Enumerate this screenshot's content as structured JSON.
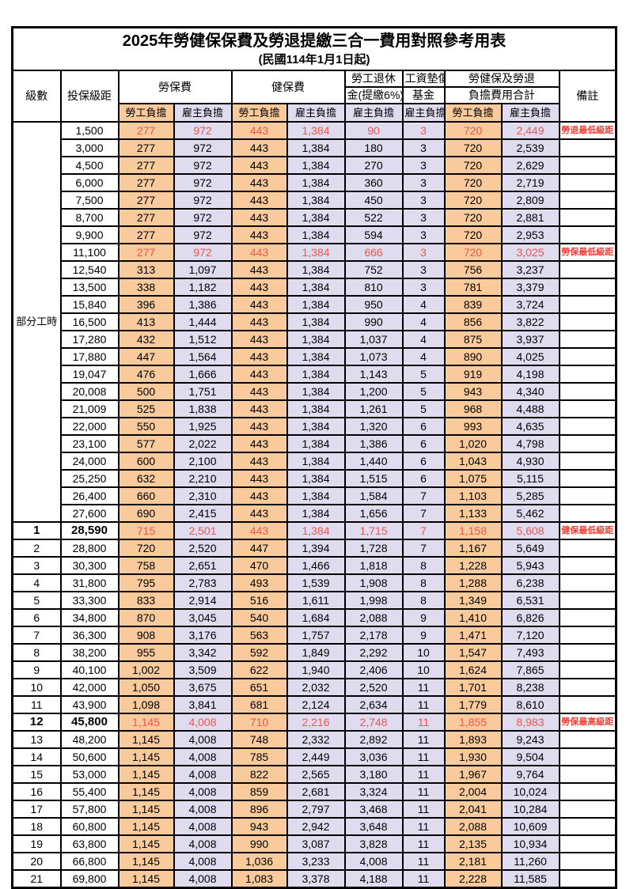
{
  "title": "2025年勞健保保費及勞退提繳三合一費用對照參考用表",
  "subtitle": "(民國114年1月1日起)",
  "colors": {
    "employee_bg": "#F9CB9C",
    "employer_bg": "#E0DCF0",
    "highlight_number": "#F4544A",
    "note_red": "#FA3C34",
    "border": "#000000"
  },
  "header": {
    "level": "級數",
    "salary_bracket": "投保級距",
    "labor_insurance": "勞保費",
    "health_insurance": "健保費",
    "pension_line1": "勞工退休",
    "pension_line2": "金(提繳6%)",
    "wage_fund_line1": "工資墊償",
    "wage_fund_line2": "基金",
    "total_line1": "勞健保及勞退",
    "total_line2": "負擔費用合計",
    "note": "備註",
    "employee_share": "勞工負擔",
    "employer_share": "雇主負擔"
  },
  "part_time_label": "部分工時",
  "part_time_row_count": 23,
  "rows": [
    {
      "level": "",
      "salary": "1,500",
      "cells": [
        "277",
        "972",
        "443",
        "1,384",
        "90",
        "3",
        "720",
        "2,449"
      ],
      "note": "勞退最低級距",
      "red": true,
      "bold": false
    },
    {
      "level": "",
      "salary": "3,000",
      "cells": [
        "277",
        "972",
        "443",
        "1,384",
        "180",
        "3",
        "720",
        "2,539"
      ],
      "note": "",
      "red": false,
      "bold": false
    },
    {
      "level": "",
      "salary": "4,500",
      "cells": [
        "277",
        "972",
        "443",
        "1,384",
        "270",
        "3",
        "720",
        "2,629"
      ],
      "note": "",
      "red": false,
      "bold": false
    },
    {
      "level": "",
      "salary": "6,000",
      "cells": [
        "277",
        "972",
        "443",
        "1,384",
        "360",
        "3",
        "720",
        "2,719"
      ],
      "note": "",
      "red": false,
      "bold": false
    },
    {
      "level": "",
      "salary": "7,500",
      "cells": [
        "277",
        "972",
        "443",
        "1,384",
        "450",
        "3",
        "720",
        "2,809"
      ],
      "note": "",
      "red": false,
      "bold": false
    },
    {
      "level": "",
      "salary": "8,700",
      "cells": [
        "277",
        "972",
        "443",
        "1,384",
        "522",
        "3",
        "720",
        "2,881"
      ],
      "note": "",
      "red": false,
      "bold": false
    },
    {
      "level": "",
      "salary": "9,900",
      "cells": [
        "277",
        "972",
        "443",
        "1,384",
        "594",
        "3",
        "720",
        "2,953"
      ],
      "note": "",
      "red": false,
      "bold": false
    },
    {
      "level": "",
      "salary": "11,100",
      "cells": [
        "277",
        "972",
        "443",
        "1,384",
        "666",
        "3",
        "720",
        "3,025"
      ],
      "note": "勞保最低級距",
      "red": true,
      "bold": false
    },
    {
      "level": "",
      "salary": "12,540",
      "cells": [
        "313",
        "1,097",
        "443",
        "1,384",
        "752",
        "3",
        "756",
        "3,237"
      ],
      "note": "",
      "red": false,
      "bold": false
    },
    {
      "level": "",
      "salary": "13,500",
      "cells": [
        "338",
        "1,182",
        "443",
        "1,384",
        "810",
        "3",
        "781",
        "3,379"
      ],
      "note": "",
      "red": false,
      "bold": false
    },
    {
      "level": "",
      "salary": "15,840",
      "cells": [
        "396",
        "1,386",
        "443",
        "1,384",
        "950",
        "4",
        "839",
        "3,724"
      ],
      "note": "",
      "red": false,
      "bold": false
    },
    {
      "level": "",
      "salary": "16,500",
      "cells": [
        "413",
        "1,444",
        "443",
        "1,384",
        "990",
        "4",
        "856",
        "3,822"
      ],
      "note": "",
      "red": false,
      "bold": false
    },
    {
      "level": "",
      "salary": "17,280",
      "cells": [
        "432",
        "1,512",
        "443",
        "1,384",
        "1,037",
        "4",
        "875",
        "3,937"
      ],
      "note": "",
      "red": false,
      "bold": false
    },
    {
      "level": "",
      "salary": "17,880",
      "cells": [
        "447",
        "1,564",
        "443",
        "1,384",
        "1,073",
        "4",
        "890",
        "4,025"
      ],
      "note": "",
      "red": false,
      "bold": false
    },
    {
      "level": "",
      "salary": "19,047",
      "cells": [
        "476",
        "1,666",
        "443",
        "1,384",
        "1,143",
        "5",
        "919",
        "4,198"
      ],
      "note": "",
      "red": false,
      "bold": false
    },
    {
      "level": "",
      "salary": "20,008",
      "cells": [
        "500",
        "1,751",
        "443",
        "1,384",
        "1,200",
        "5",
        "943",
        "4,340"
      ],
      "note": "",
      "red": false,
      "bold": false
    },
    {
      "level": "",
      "salary": "21,009",
      "cells": [
        "525",
        "1,838",
        "443",
        "1,384",
        "1,261",
        "5",
        "968",
        "4,488"
      ],
      "note": "",
      "red": false,
      "bold": false
    },
    {
      "level": "",
      "salary": "22,000",
      "cells": [
        "550",
        "1,925",
        "443",
        "1,384",
        "1,320",
        "6",
        "993",
        "4,635"
      ],
      "note": "",
      "red": false,
      "bold": false
    },
    {
      "level": "",
      "salary": "23,100",
      "cells": [
        "577",
        "2,022",
        "443",
        "1,384",
        "1,386",
        "6",
        "1,020",
        "4,798"
      ],
      "note": "",
      "red": false,
      "bold": false
    },
    {
      "level": "",
      "salary": "24,000",
      "cells": [
        "600",
        "2,100",
        "443",
        "1,384",
        "1,440",
        "6",
        "1,043",
        "4,930"
      ],
      "note": "",
      "red": false,
      "bold": false
    },
    {
      "level": "",
      "salary": "25,250",
      "cells": [
        "632",
        "2,210",
        "443",
        "1,384",
        "1,515",
        "6",
        "1,075",
        "5,115"
      ],
      "note": "",
      "red": false,
      "bold": false
    },
    {
      "level": "",
      "salary": "26,400",
      "cells": [
        "660",
        "2,310",
        "443",
        "1,384",
        "1,584",
        "7",
        "1,103",
        "5,285"
      ],
      "note": "",
      "red": false,
      "bold": false
    },
    {
      "level": "",
      "salary": "27,600",
      "cells": [
        "690",
        "2,415",
        "443",
        "1,384",
        "1,656",
        "7",
        "1,133",
        "5,462"
      ],
      "note": "",
      "red": false,
      "bold": false
    },
    {
      "level": "1",
      "salary": "28,590",
      "cells": [
        "715",
        "2,501",
        "443",
        "1,384",
        "1,715",
        "7",
        "1,158",
        "5,608"
      ],
      "note": "健保最低級距",
      "red": true,
      "bold": true
    },
    {
      "level": "2",
      "salary": "28,800",
      "cells": [
        "720",
        "2,520",
        "447",
        "1,394",
        "1,728",
        "7",
        "1,167",
        "5,649"
      ],
      "note": "",
      "red": false,
      "bold": false
    },
    {
      "level": "3",
      "salary": "30,300",
      "cells": [
        "758",
        "2,651",
        "470",
        "1,466",
        "1,818",
        "8",
        "1,228",
        "5,943"
      ],
      "note": "",
      "red": false,
      "bold": false
    },
    {
      "level": "4",
      "salary": "31,800",
      "cells": [
        "795",
        "2,783",
        "493",
        "1,539",
        "1,908",
        "8",
        "1,288",
        "6,238"
      ],
      "note": "",
      "red": false,
      "bold": false
    },
    {
      "level": "5",
      "salary": "33,300",
      "cells": [
        "833",
        "2,914",
        "516",
        "1,611",
        "1,998",
        "8",
        "1,349",
        "6,531"
      ],
      "note": "",
      "red": false,
      "bold": false
    },
    {
      "level": "6",
      "salary": "34,800",
      "cells": [
        "870",
        "3,045",
        "540",
        "1,684",
        "2,088",
        "9",
        "1,410",
        "6,826"
      ],
      "note": "",
      "red": false,
      "bold": false
    },
    {
      "level": "7",
      "salary": "36,300",
      "cells": [
        "908",
        "3,176",
        "563",
        "1,757",
        "2,178",
        "9",
        "1,471",
        "7,120"
      ],
      "note": "",
      "red": false,
      "bold": false
    },
    {
      "level": "8",
      "salary": "38,200",
      "cells": [
        "955",
        "3,342",
        "592",
        "1,849",
        "2,292",
        "10",
        "1,547",
        "7,493"
      ],
      "note": "",
      "red": false,
      "bold": false
    },
    {
      "level": "9",
      "salary": "40,100",
      "cells": [
        "1,002",
        "3,509",
        "622",
        "1,940",
        "2,406",
        "10",
        "1,624",
        "7,865"
      ],
      "note": "",
      "red": false,
      "bold": false
    },
    {
      "level": "10",
      "salary": "42,000",
      "cells": [
        "1,050",
        "3,675",
        "651",
        "2,032",
        "2,520",
        "11",
        "1,701",
        "8,238"
      ],
      "note": "",
      "red": false,
      "bold": false
    },
    {
      "level": "11",
      "salary": "43,900",
      "cells": [
        "1,098",
        "3,841",
        "681",
        "2,124",
        "2,634",
        "11",
        "1,779",
        "8,610"
      ],
      "note": "",
      "red": false,
      "bold": false
    },
    {
      "level": "12",
      "salary": "45,800",
      "cells": [
        "1,145",
        "4,008",
        "710",
        "2,216",
        "2,748",
        "11",
        "1,855",
        "8,983"
      ],
      "note": "勞保最高級距",
      "red": true,
      "bold": true
    },
    {
      "level": "13",
      "salary": "48,200",
      "cells": [
        "1,145",
        "4,008",
        "748",
        "2,332",
        "2,892",
        "11",
        "1,893",
        "9,243"
      ],
      "note": "",
      "red": false,
      "bold": false
    },
    {
      "level": "14",
      "salary": "50,600",
      "cells": [
        "1,145",
        "4,008",
        "785",
        "2,449",
        "3,036",
        "11",
        "1,930",
        "9,504"
      ],
      "note": "",
      "red": false,
      "bold": false
    },
    {
      "level": "15",
      "salary": "53,000",
      "cells": [
        "1,145",
        "4,008",
        "822",
        "2,565",
        "3,180",
        "11",
        "1,967",
        "9,764"
      ],
      "note": "",
      "red": false,
      "bold": false
    },
    {
      "level": "16",
      "salary": "55,400",
      "cells": [
        "1,145",
        "4,008",
        "859",
        "2,681",
        "3,324",
        "11",
        "2,004",
        "10,024"
      ],
      "note": "",
      "red": false,
      "bold": false
    },
    {
      "level": "17",
      "salary": "57,800",
      "cells": [
        "1,145",
        "4,008",
        "896",
        "2,797",
        "3,468",
        "11",
        "2,041",
        "10,284"
      ],
      "note": "",
      "red": false,
      "bold": false
    },
    {
      "level": "18",
      "salary": "60,800",
      "cells": [
        "1,145",
        "4,008",
        "943",
        "2,942",
        "3,648",
        "11",
        "2,088",
        "10,609"
      ],
      "note": "",
      "red": false,
      "bold": false
    },
    {
      "level": "19",
      "salary": "63,800",
      "cells": [
        "1,145",
        "4,008",
        "990",
        "3,087",
        "3,828",
        "11",
        "2,135",
        "10,934"
      ],
      "note": "",
      "red": false,
      "bold": false
    },
    {
      "level": "20",
      "salary": "66,800",
      "cells": [
        "1,145",
        "4,008",
        "1,036",
        "3,233",
        "4,008",
        "11",
        "2,181",
        "11,260"
      ],
      "note": "",
      "red": false,
      "bold": false
    },
    {
      "level": "21",
      "salary": "69,800",
      "cells": [
        "1,145",
        "4,008",
        "1,083",
        "3,378",
        "4,188",
        "11",
        "2,228",
        "11,585"
      ],
      "note": "",
      "red": false,
      "bold": false
    }
  ]
}
